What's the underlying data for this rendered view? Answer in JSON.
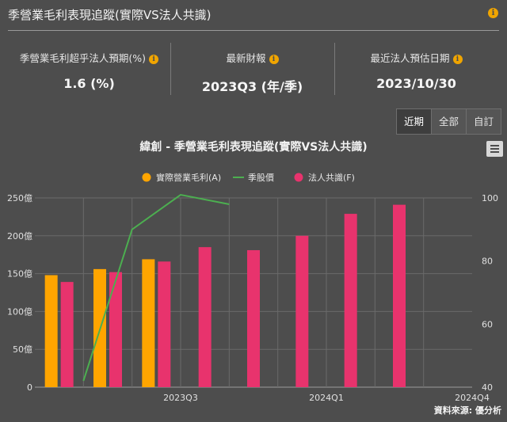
{
  "header": {
    "title": "季營業毛利表現追蹤(實際VS法人共識)",
    "info_icon": "info-icon"
  },
  "stats": [
    {
      "label": "季營業毛利超乎法人預期(%)",
      "value": "1.6 (%)"
    },
    {
      "label": "最新財報",
      "value": "2023Q3 (年/季)"
    },
    {
      "label": "最近法人預估日期",
      "value": "2023/10/30"
    }
  ],
  "range_buttons": [
    {
      "label": "近期",
      "active": true
    },
    {
      "label": "全部",
      "active": false
    },
    {
      "label": "自訂",
      "active": false
    }
  ],
  "menu_icon": "hamburger-menu-icon",
  "source": "資料來源: 優分析",
  "colors": {
    "background": "#4d4d4d",
    "actual": "#ffa500",
    "consensus": "#e8336d",
    "price": "#4caf50",
    "info": "#f0a500"
  },
  "chart_data": {
    "type": "bar",
    "title": "緯創 - 季營業毛利表現追蹤(實際VS法人共識)",
    "legend_position": "top-center",
    "grid": true,
    "categories": [
      "",
      "",
      "2023Q3",
      "",
      "",
      "2024Q1",
      "",
      "",
      "2024Q4"
    ],
    "y_left": {
      "ticks": [
        "0",
        "50億",
        "100億",
        "150億",
        "200億",
        "250億"
      ],
      "ylim": [
        0,
        250
      ]
    },
    "y_right": {
      "ticks": [
        "40",
        "60",
        "80",
        "100"
      ],
      "ylim": [
        40,
        100
      ]
    },
    "series": [
      {
        "name": "實際營業毛利(A)",
        "type": "bar",
        "axis": "left",
        "color": "#ffa500",
        "values": [
          148,
          156,
          169,
          null,
          null,
          null,
          null,
          null,
          null
        ]
      },
      {
        "name": "季股價",
        "type": "line",
        "axis": "right",
        "color": "#4caf50",
        "values": [
          42,
          90,
          101,
          98,
          null,
          null,
          null,
          null,
          null
        ]
      },
      {
        "name": "法人共識(F)",
        "type": "bar",
        "axis": "left",
        "color": "#e8336d",
        "values": [
          139,
          152,
          166,
          185,
          181,
          200,
          229,
          241,
          null
        ]
      }
    ]
  }
}
